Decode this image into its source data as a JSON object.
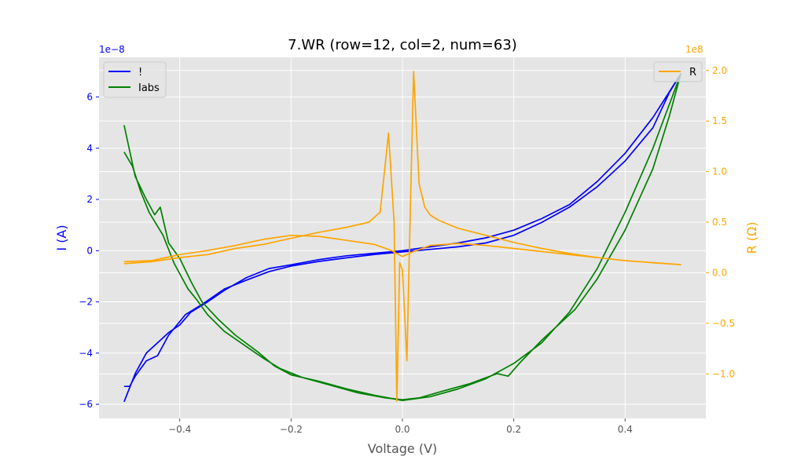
{
  "chart_data": {
    "type": "line",
    "title": "7.WR (row=12, col=2, num=63)",
    "xlabel": "Voltage (V)",
    "ylabel_left": "I (A)",
    "ylabel_right": "R (Ω)",
    "left_offset_label": "1e−8",
    "right_offset_label": "1e8",
    "xlim": [
      -0.545,
      0.545
    ],
    "ylim_left": [
      -6.55,
      7.55
    ],
    "ylim_right": [
      -1.44,
      2.13
    ],
    "x_ticks": [
      {
        "value": -0.4,
        "label": "−0.4"
      },
      {
        "value": -0.2,
        "label": "−0.2"
      },
      {
        "value": 0.0,
        "label": "0.0"
      },
      {
        "value": 0.2,
        "label": "0.2"
      },
      {
        "value": 0.4,
        "label": "0.4"
      }
    ],
    "y_left_ticks": [
      {
        "value": -6,
        "label": "−6"
      },
      {
        "value": -4,
        "label": "−4"
      },
      {
        "value": -2,
        "label": "−2"
      },
      {
        "value": 0,
        "label": "0"
      },
      {
        "value": 2,
        "label": "2"
      },
      {
        "value": 4,
        "label": "4"
      },
      {
        "value": 6,
        "label": "6"
      }
    ],
    "y_right_ticks": [
      {
        "value": -1.0,
        "label": "−1.0"
      },
      {
        "value": -0.5,
        "label": "−0.5"
      },
      {
        "value": 0.0,
        "label": "0.0"
      },
      {
        "value": 0.5,
        "label": "0.5"
      },
      {
        "value": 1.0,
        "label": "1.0"
      },
      {
        "value": 1.5,
        "label": "1.5"
      },
      {
        "value": 2.0,
        "label": "2.0"
      }
    ],
    "grid": true,
    "legend_left": {
      "placement": "top-left",
      "entries": [
        "!",
        "Iabs"
      ]
    },
    "legend_right": {
      "placement": "top-right",
      "entries": [
        "R"
      ]
    },
    "series": [
      {
        "name": "!",
        "axis": "left",
        "color": "#0000ff",
        "points": [
          [
            -0.5,
            -5.9
          ],
          [
            -0.48,
            -4.8
          ],
          [
            -0.46,
            -4.0
          ],
          [
            -0.44,
            -3.6
          ],
          [
            -0.42,
            -3.2
          ],
          [
            -0.4,
            -2.9
          ],
          [
            -0.38,
            -2.4
          ],
          [
            -0.35,
            -2.0
          ],
          [
            -0.32,
            -1.55
          ],
          [
            -0.28,
            -1.05
          ],
          [
            -0.24,
            -0.7
          ],
          [
            -0.2,
            -0.55
          ],
          [
            -0.15,
            -0.35
          ],
          [
            -0.1,
            -0.2
          ],
          [
            -0.05,
            -0.1
          ],
          [
            0.0,
            0.0
          ],
          [
            0.05,
            0.15
          ],
          [
            0.1,
            0.3
          ],
          [
            0.15,
            0.5
          ],
          [
            0.2,
            0.8
          ],
          [
            0.25,
            1.25
          ],
          [
            0.3,
            1.8
          ],
          [
            0.35,
            2.7
          ],
          [
            0.4,
            3.8
          ],
          [
            0.45,
            5.2
          ],
          [
            0.5,
            6.9
          ],
          [
            0.48,
            6.2
          ],
          [
            0.45,
            4.8
          ],
          [
            0.4,
            3.5
          ],
          [
            0.35,
            2.5
          ],
          [
            0.3,
            1.7
          ],
          [
            0.25,
            1.1
          ],
          [
            0.2,
            0.6
          ],
          [
            0.15,
            0.3
          ],
          [
            0.1,
            0.15
          ],
          [
            0.05,
            0.05
          ],
          [
            0.0,
            -0.05
          ],
          [
            -0.05,
            -0.15
          ],
          [
            -0.1,
            -0.28
          ],
          [
            -0.15,
            -0.42
          ],
          [
            -0.2,
            -0.6
          ],
          [
            -0.24,
            -0.82
          ],
          [
            -0.28,
            -1.15
          ],
          [
            -0.32,
            -1.5
          ],
          [
            -0.36,
            -2.1
          ],
          [
            -0.39,
            -2.5
          ],
          [
            -0.42,
            -3.3
          ],
          [
            -0.44,
            -4.1
          ],
          [
            -0.46,
            -4.3
          ],
          [
            -0.48,
            -4.9
          ],
          [
            -0.49,
            -5.3
          ],
          [
            -0.5,
            -5.3
          ]
        ]
      },
      {
        "name": "Iabs",
        "axis": "left",
        "color": "#008000",
        "points": [
          [
            -0.5,
            4.9
          ],
          [
            -0.48,
            2.9
          ],
          [
            -0.46,
            2.0
          ],
          [
            -0.445,
            1.4
          ],
          [
            -0.435,
            1.7
          ],
          [
            -0.42,
            0.3
          ],
          [
            -0.4,
            -0.3
          ],
          [
            -0.38,
            -1.2
          ],
          [
            -0.36,
            -2.0
          ],
          [
            -0.33,
            -2.7
          ],
          [
            -0.3,
            -3.3
          ],
          [
            -0.26,
            -3.95
          ],
          [
            -0.23,
            -4.5
          ],
          [
            -0.2,
            -4.85
          ],
          [
            -0.15,
            -5.1
          ],
          [
            -0.1,
            -5.4
          ],
          [
            -0.05,
            -5.65
          ],
          [
            0.0,
            -5.85
          ],
          [
            0.05,
            -5.7
          ],
          [
            0.1,
            -5.4
          ],
          [
            0.15,
            -5.0
          ],
          [
            0.2,
            -4.4
          ],
          [
            0.25,
            -3.6
          ],
          [
            0.3,
            -2.4
          ],
          [
            0.35,
            -0.7
          ],
          [
            0.4,
            1.5
          ],
          [
            0.45,
            4.0
          ],
          [
            0.5,
            6.9
          ],
          [
            0.48,
            5.3
          ],
          [
            0.45,
            3.2
          ],
          [
            0.4,
            0.8
          ],
          [
            0.35,
            -1.1
          ],
          [
            0.31,
            -2.3
          ],
          [
            0.25,
            -3.5
          ],
          [
            0.21,
            -4.4
          ],
          [
            0.19,
            -4.9
          ],
          [
            0.17,
            -4.8
          ],
          [
            0.12,
            -5.2
          ],
          [
            0.07,
            -5.5
          ],
          [
            0.03,
            -5.75
          ],
          [
            0.0,
            -5.82
          ],
          [
            -0.03,
            -5.75
          ],
          [
            -0.08,
            -5.55
          ],
          [
            -0.13,
            -5.25
          ],
          [
            -0.18,
            -4.95
          ],
          [
            -0.22,
            -4.6
          ],
          [
            -0.25,
            -4.2
          ],
          [
            -0.28,
            -3.75
          ],
          [
            -0.32,
            -3.15
          ],
          [
            -0.35,
            -2.5
          ],
          [
            -0.37,
            -1.9
          ],
          [
            -0.385,
            -1.5
          ],
          [
            -0.41,
            -0.5
          ],
          [
            -0.43,
            0.6
          ],
          [
            -0.455,
            1.5
          ],
          [
            -0.47,
            2.3
          ],
          [
            -0.485,
            3.3
          ],
          [
            -0.5,
            3.85
          ]
        ]
      },
      {
        "name": "R",
        "axis": "right",
        "color": "#ffa500",
        "points": [
          [
            -0.5,
            0.09
          ],
          [
            -0.45,
            0.11
          ],
          [
            -0.4,
            0.15
          ],
          [
            -0.35,
            0.18
          ],
          [
            -0.3,
            0.24
          ],
          [
            -0.25,
            0.28
          ],
          [
            -0.2,
            0.34
          ],
          [
            -0.15,
            0.4
          ],
          [
            -0.1,
            0.45
          ],
          [
            -0.06,
            0.5
          ],
          [
            -0.04,
            0.6
          ],
          [
            -0.025,
            1.38
          ],
          [
            -0.015,
            0.5
          ],
          [
            -0.01,
            -1.27
          ],
          [
            -0.005,
            0.1
          ],
          [
            0.0,
            0.03
          ],
          [
            0.008,
            -0.87
          ],
          [
            0.012,
            0.1
          ],
          [
            0.02,
            1.99
          ],
          [
            0.03,
            0.88
          ],
          [
            0.04,
            0.65
          ],
          [
            0.05,
            0.57
          ],
          [
            0.065,
            0.52
          ],
          [
            0.1,
            0.44
          ],
          [
            0.15,
            0.37
          ],
          [
            0.2,
            0.3
          ],
          [
            0.25,
            0.24
          ],
          [
            0.3,
            0.19
          ],
          [
            0.35,
            0.15
          ],
          [
            0.4,
            0.12
          ],
          [
            0.45,
            0.1
          ],
          [
            0.5,
            0.08
          ],
          [
            0.45,
            0.1
          ],
          [
            0.4,
            0.12
          ],
          [
            0.35,
            0.15
          ],
          [
            0.3,
            0.18
          ],
          [
            0.25,
            0.21
          ],
          [
            0.2,
            0.24
          ],
          [
            0.15,
            0.27
          ],
          [
            0.1,
            0.29
          ],
          [
            0.05,
            0.27
          ],
          [
            0.02,
            0.21
          ],
          [
            0.0,
            0.16
          ],
          [
            -0.02,
            0.22
          ],
          [
            -0.05,
            0.28
          ],
          [
            -0.1,
            0.32
          ],
          [
            -0.15,
            0.36
          ],
          [
            -0.2,
            0.37
          ],
          [
            -0.25,
            0.33
          ],
          [
            -0.3,
            0.27
          ],
          [
            -0.35,
            0.22
          ],
          [
            -0.4,
            0.18
          ],
          [
            -0.45,
            0.12
          ],
          [
            -0.5,
            0.11
          ]
        ]
      }
    ]
  }
}
